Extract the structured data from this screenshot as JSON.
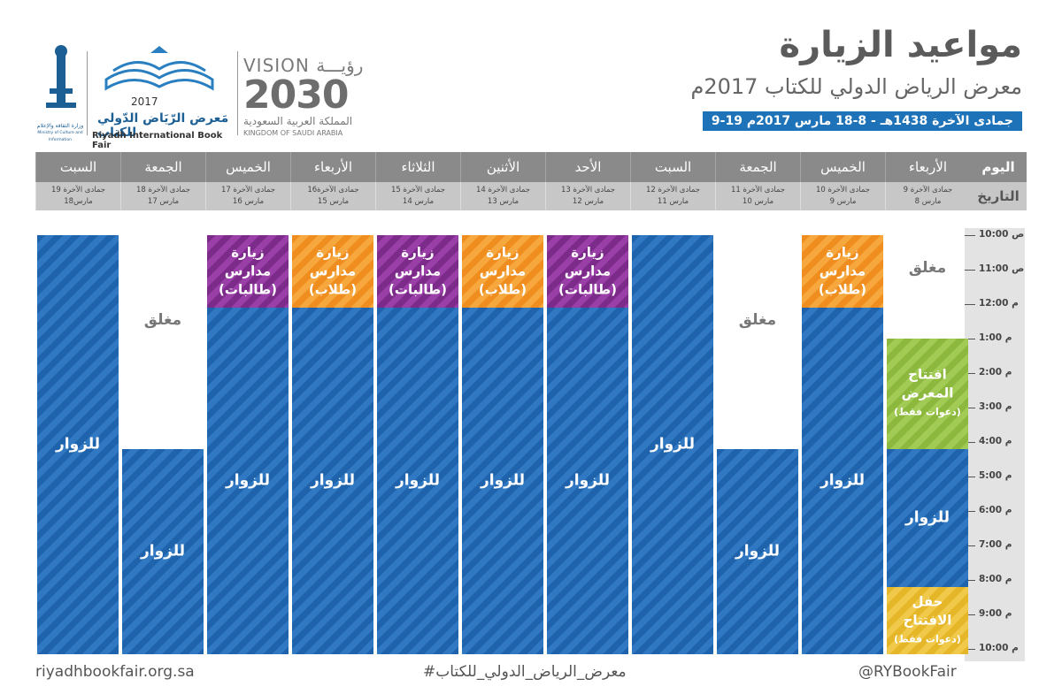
{
  "header": {
    "title": "مواعيد الزيارة",
    "subtitle": "معرض الرياض الدولي للكتاب 2017م",
    "date_range": "9-19 جمادى الآخرة 1438هـ - 8-18 مارس 2017م"
  },
  "logos": {
    "vision_word_en": "VISION",
    "vision_word_ar": "رؤيـــة",
    "vision_year": "2030",
    "vision_country_ar": "المملكة العربية السعودية",
    "vision_country_en": "KINGDOM OF SAUDI ARABIA",
    "fair_year": "2017",
    "fair_name_ar": "مَعرض الرّيَاض الدّولي للكتاب",
    "fair_name_en": "Riyadh International Book Fair",
    "ministry_ar": "وزارة الثقافة والإعلام",
    "ministry_en": "Ministry of Culture and Information"
  },
  "schedule": {
    "day_label": "اليوم",
    "date_label": "التاريخ",
    "days": [
      {
        "day": "الأربعاء",
        "hijri": "9 جمادى الآخرة",
        "greg": "8 مارس"
      },
      {
        "day": "الخميس",
        "hijri": "10 جمادى الآخرة",
        "greg": "9 مارس"
      },
      {
        "day": "الجمعة",
        "hijri": "11 جمادى الآخرة",
        "greg": "10 مارس"
      },
      {
        "day": "السبت",
        "hijri": "12 جمادى الآخرة",
        "greg": "11 مارس"
      },
      {
        "day": "الأحد",
        "hijri": "13 جمادى الآخرة",
        "greg": "12 مارس"
      },
      {
        "day": "الأثنين",
        "hijri": "14 جمادى الآخرة",
        "greg": "13 مارس"
      },
      {
        "day": "الثلاثاء",
        "hijri": "15 جمادى الآخرة",
        "greg": "14 مارس"
      },
      {
        "day": "الأربعاء",
        "hijri": "16جمادى الآخرة",
        "greg": "15 مارس"
      },
      {
        "day": "الخميس",
        "hijri": "17 جمادى الآخرة",
        "greg": "16 مارس"
      },
      {
        "day": "الجمعة",
        "hijri": "18 جمادى الآخرة",
        "greg": "17 مارس"
      },
      {
        "day": "السبت",
        "hijri": "19 جمادى الآخرة",
        "greg": "18مارس"
      }
    ],
    "times": [
      "10:00 ص",
      "11:00 ص",
      "12:00 م",
      "1:00 م",
      "2:00 م",
      "3:00 م",
      "4:00 م",
      "5:00 م",
      "6:00 م",
      "7:00 م",
      "8:00 م",
      "9:00 م",
      "10:00 م"
    ],
    "labels": {
      "visitors": "للزوار",
      "closed": "مغلق",
      "schools_girls_1": "زيارة مدارس",
      "schools_girls_2": "(طالبات)",
      "schools_boys_1": "زيارة مدارس",
      "schools_boys_2": "(طلاب)",
      "opening_exhibit_1": "افتتاح",
      "opening_exhibit_2": "المعرض",
      "opening_exhibit_3": "(دعوات فقط)",
      "ceremony_1": "حفل",
      "ceremony_2": "الافتتاح",
      "ceremony_3": "(دعوات فقط)"
    },
    "colors": {
      "visitors": "#2a6db5",
      "schools_girls": "#8e3599",
      "schools_boys": "#f39a2e",
      "opening": "#97c24a",
      "ceremony": "#ecbf3a"
    }
  },
  "footer": {
    "website": "riyadhbookfair.org.sa",
    "hashtag": "#معرض_الرياض_الدولي_للكتاب",
    "handle": "@RYBookFair"
  }
}
